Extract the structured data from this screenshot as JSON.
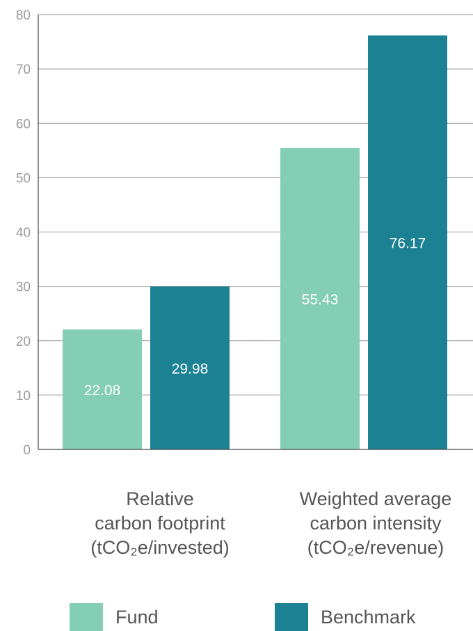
{
  "colors": {
    "fund": "#83ceb5",
    "benchmark": "#1c8193",
    "axis": "#444444",
    "grid": "#9a9a9a",
    "tick_text": "#9a9a9a",
    "label_text": "#555555"
  },
  "chart_data": {
    "type": "bar",
    "categories": [
      "Relative carbon footprint (tCO₂e/invested)",
      "Weighted average carbon intensity (tCO₂e/revenue)"
    ],
    "category_lines": [
      [
        "Relative",
        "carbon footprint",
        "(tCO₂e/invested)"
      ],
      [
        "Weighted average",
        "carbon intensity",
        "(tCO₂e/revenue)"
      ]
    ],
    "series": [
      {
        "name": "Fund",
        "values": [
          22.08,
          55.43
        ],
        "labels": [
          "22.08",
          "55.43"
        ]
      },
      {
        "name": "Benchmark",
        "values": [
          29.98,
          76.17
        ],
        "labels": [
          "29.98",
          "76.17"
        ]
      }
    ],
    "ylim": [
      0,
      80
    ],
    "yticks": [
      0,
      10,
      20,
      30,
      40,
      50,
      60,
      70,
      80
    ],
    "grid": true,
    "legend_position": "bottom"
  },
  "legend": {
    "fund_label": "Fund",
    "benchmark_label": "Benchmark"
  }
}
